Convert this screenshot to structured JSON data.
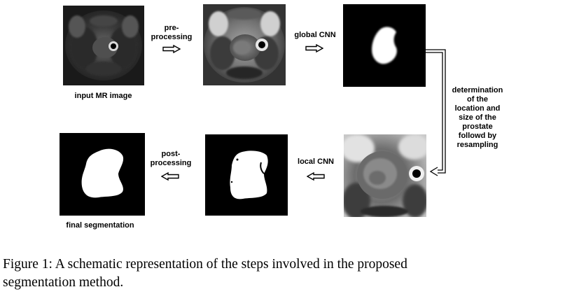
{
  "diagram": {
    "labels": {
      "input": "input MR image",
      "preprocessing": [
        "pre-",
        "processing"
      ],
      "global_cnn": "global CNN",
      "determination": [
        "determination",
        "of the",
        "location and",
        "size of the",
        "prostate",
        "followd by",
        "resampling"
      ],
      "local_cnn": "local CNN",
      "postprocessing": [
        "post-",
        "processing"
      ],
      "final": "final segmentation"
    }
  },
  "caption": {
    "line1": "Figure 1:  A schematic representation of the steps involved in the proposed",
    "line2": "segmentation method."
  }
}
